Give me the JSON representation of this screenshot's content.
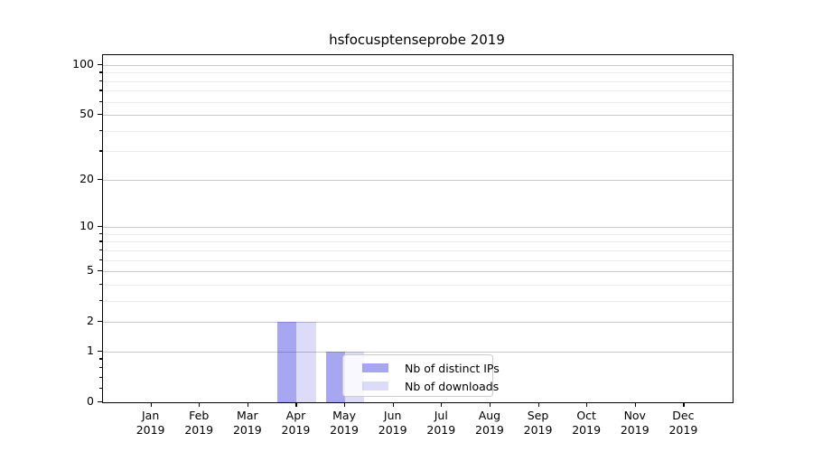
{
  "title": "hsfocusptenseprobe 2019",
  "chart_data": {
    "type": "bar",
    "title": "hsfocusptenseprobe 2019",
    "categories": [
      "Jan 2019",
      "Feb 2019",
      "Mar 2019",
      "Apr 2019",
      "May 2019",
      "Jun 2019",
      "Jul 2019",
      "Aug 2019",
      "Sep 2019",
      "Oct 2019",
      "Nov 2019",
      "Dec 2019"
    ],
    "x_tick_line1": [
      "Jan",
      "Feb",
      "Mar",
      "Apr",
      "May",
      "Jun",
      "Jul",
      "Aug",
      "Sep",
      "Oct",
      "Nov",
      "Dec"
    ],
    "x_tick_line2": "2019",
    "series": [
      {
        "name": "Nb of distinct IPs",
        "values": [
          0,
          0,
          0,
          2,
          1,
          0,
          0,
          0,
          0,
          0,
          0,
          0
        ],
        "color_hex": "#a8a8f1",
        "fill": "rgba(34,34,221,0.4)"
      },
      {
        "name": "Nb of downloads",
        "values": [
          0,
          0,
          0,
          2,
          1,
          0,
          0,
          0,
          0,
          0,
          0,
          0
        ],
        "color_hex": "#dcdcf9",
        "fill": "rgba(22,22,215,0.15)"
      }
    ],
    "ylabel": "",
    "xlabel": "",
    "yscale": "log1p",
    "ylim": [
      0,
      115
    ],
    "y_major_ticks": [
      0,
      1,
      2,
      5,
      10,
      20,
      50,
      100
    ],
    "y_minor_ticks": [
      0.2,
      0.4,
      0.6,
      0.8,
      3,
      4,
      6,
      7,
      8,
      9,
      30,
      40,
      60,
      70,
      80,
      90
    ],
    "grid": "horizontal major+minor",
    "legend_position": "lower center"
  },
  "colors": {
    "background": "#ffffff",
    "grid_major": "#c9c9c9",
    "grid_minor": "#ebebeb",
    "spine": "#000000",
    "legend_border": "#cccccc",
    "text": "#000000"
  }
}
